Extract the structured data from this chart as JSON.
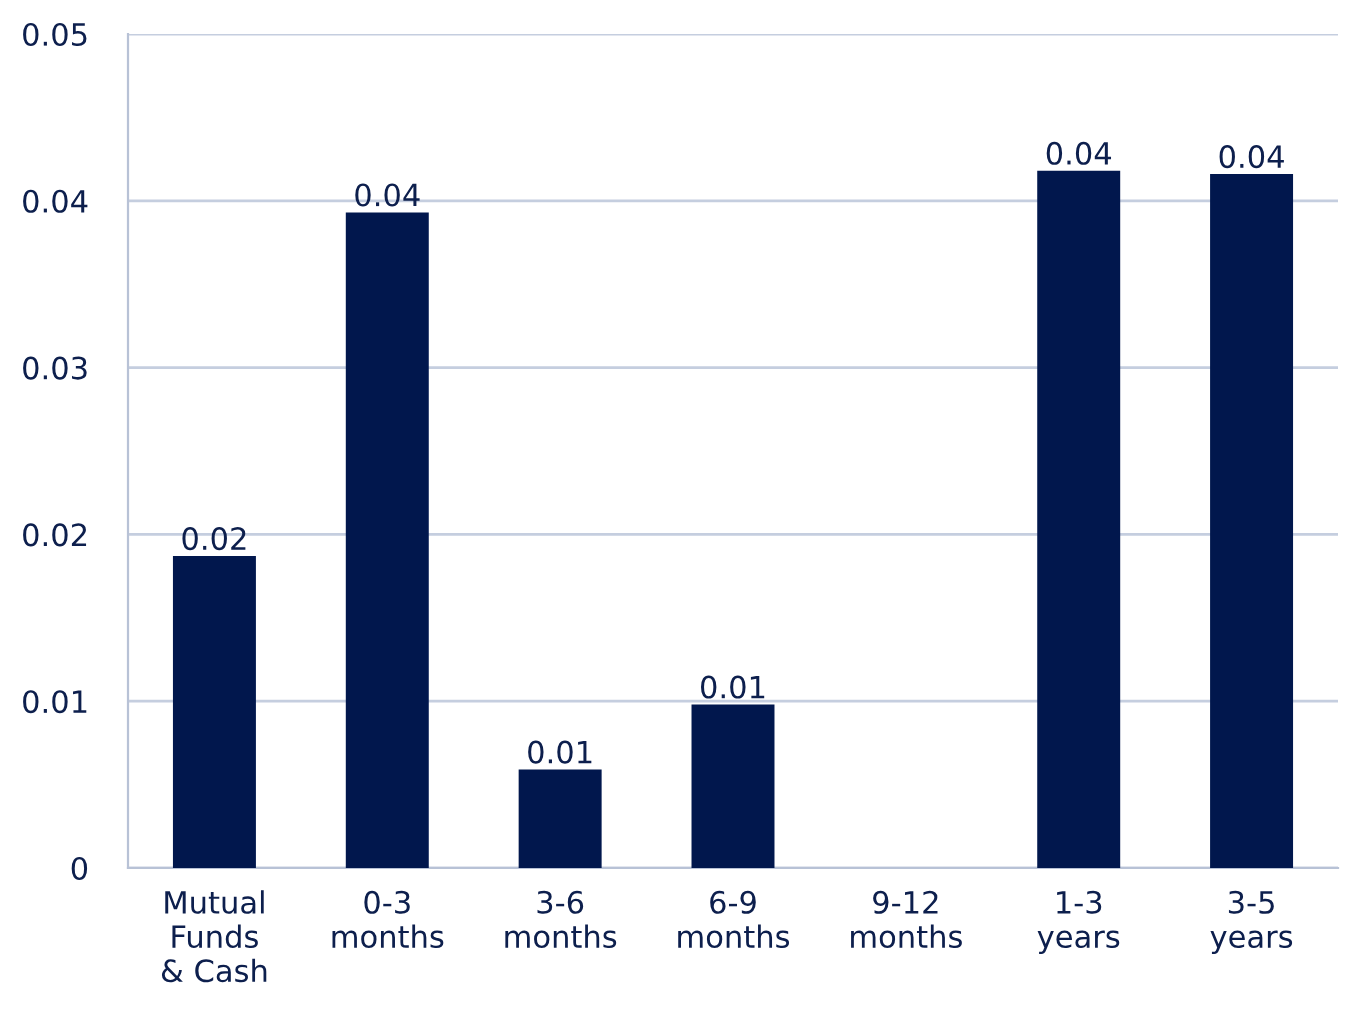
{
  "chart_data": {
    "type": "bar",
    "categories": [
      "Mutual\nFunds\n& Cash",
      "0-3\nmonths",
      "3-6\nmonths",
      "6-9\nmonths",
      "9-12\nmonths",
      "1-3\nyears",
      "3-5\nyears"
    ],
    "values": [
      0.0187,
      0.0393,
      0.0059,
      0.0098,
      null,
      0.0418,
      0.0416
    ],
    "value_labels": [
      "0.02",
      "0.04",
      "0.01",
      "0.01",
      null,
      "0.04",
      "0.04"
    ],
    "color": "#01174d",
    "ylim": [
      0,
      0.05
    ],
    "yticks": [
      {
        "value": 0,
        "label": "0"
      },
      0.01,
      0.02,
      0.03,
      0.04,
      0.05
    ],
    "grid": "y",
    "legend": false
  }
}
